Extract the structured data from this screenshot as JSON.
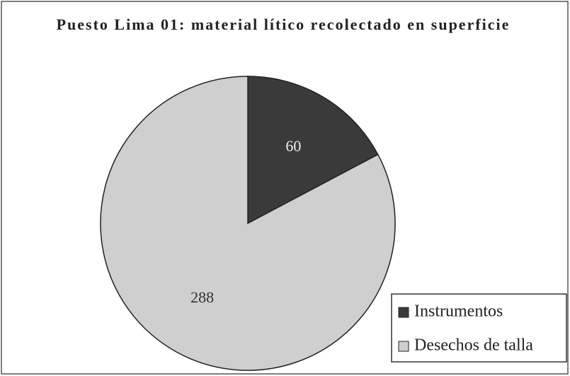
{
  "chart_data": {
    "type": "pie",
    "title": "Puesto Lima 01: material lítico recolectado en superficie",
    "categories": [
      "Instrumentos",
      "Desechos de talla"
    ],
    "values": [
      60,
      288
    ],
    "colors": [
      "#3a3a3a",
      "#cfcfcf"
    ],
    "legend": "lower right"
  }
}
